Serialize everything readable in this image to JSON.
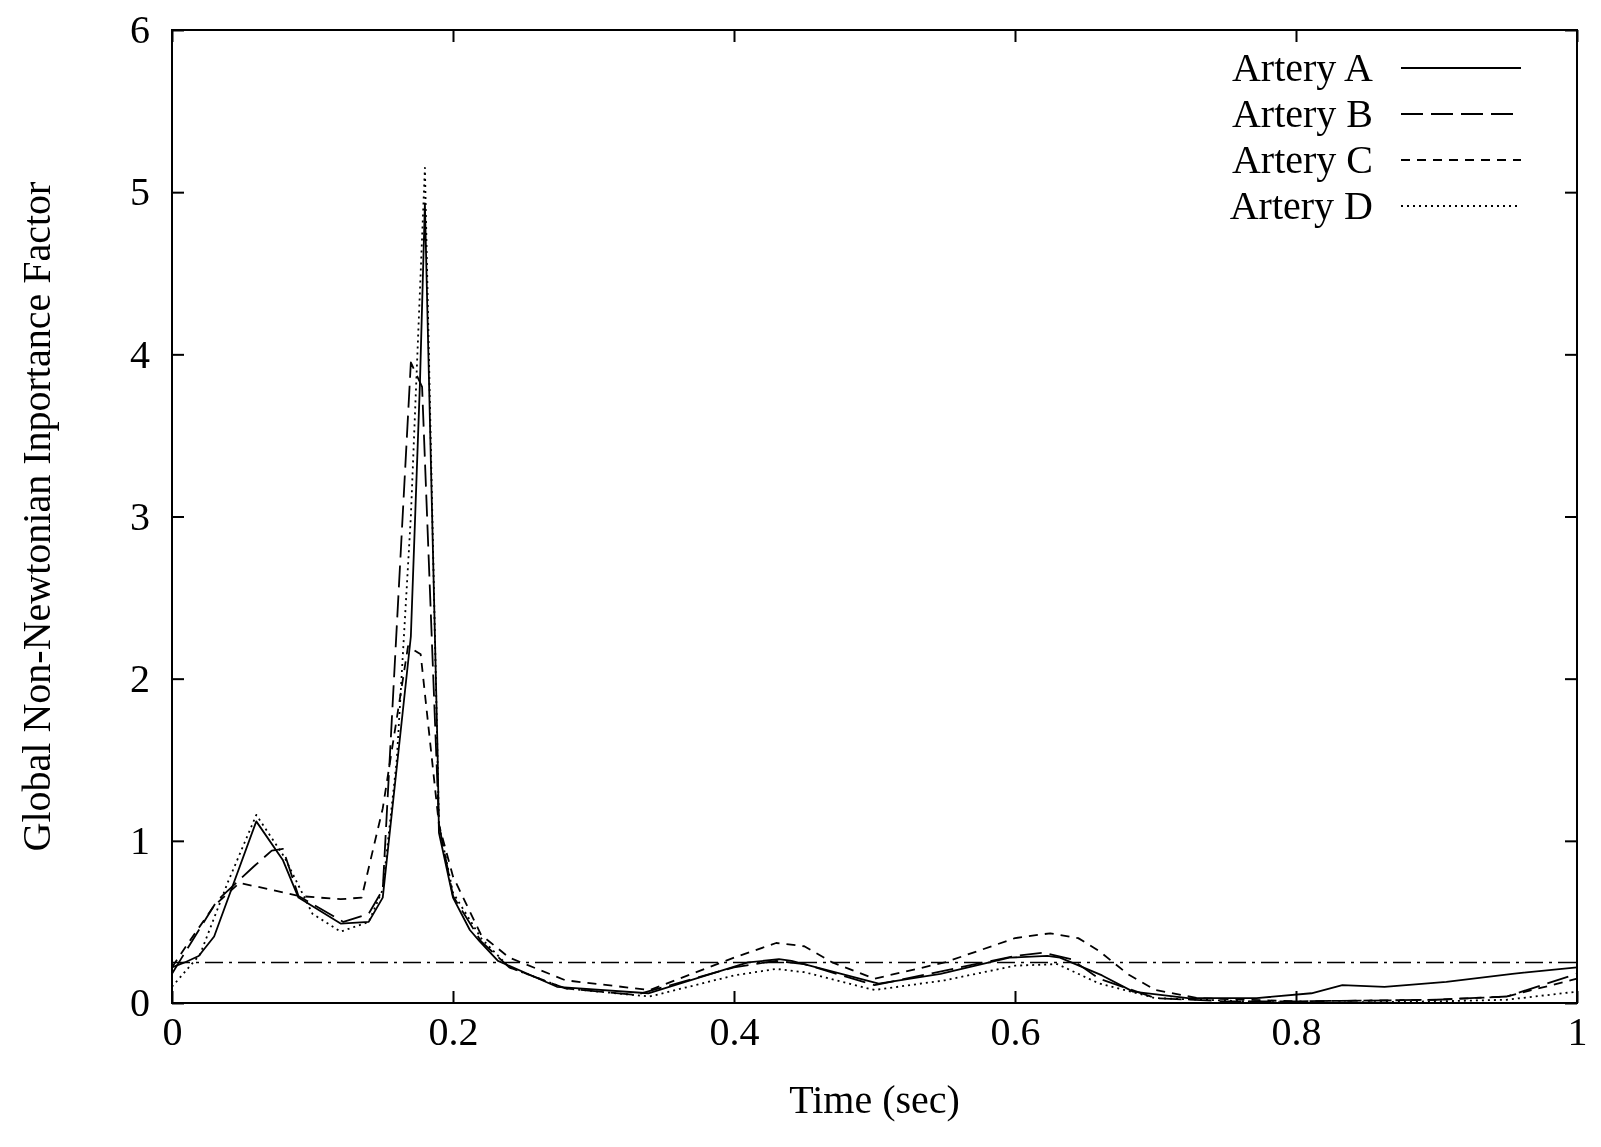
{
  "chart_data": {
    "type": "line",
    "xlabel": "Time (sec)",
    "ylabel": "Global Non-Newtonian Inportance Factor",
    "xlim": [
      0,
      1
    ],
    "ylim": [
      0,
      6
    ],
    "xticks": [
      0,
      0.2,
      0.4,
      0.6,
      0.8,
      1
    ],
    "yticks": [
      0,
      1,
      2,
      3,
      4,
      5,
      6
    ],
    "grid": false,
    "legend": "top right",
    "series": [
      {
        "name": "Artery A",
        "color": "#000000",
        "line_style": "solid",
        "x": [
          0,
          0.009,
          0.019,
          0.03,
          0.06,
          0.079,
          0.09,
          0.12,
          0.14,
          0.15,
          0.17,
          0.1765,
          0.18,
          0.189,
          0.19,
          0.2,
          0.212,
          0.219,
          0.232,
          0.274,
          0.339,
          0.41,
          0.432,
          0.441,
          0.503,
          0.547,
          0.596,
          0.623,
          0.632,
          0.662,
          0.684,
          0.723,
          0.772,
          0.811,
          0.833,
          0.863,
          0.907,
          0.954,
          1
        ],
        "values": [
          0.22,
          0.25,
          0.29,
          0.41,
          1.12,
          0.88,
          0.65,
          0.49,
          0.5,
          0.65,
          2.26,
          3.83,
          4.93,
          1.56,
          1.05,
          0.65,
          0.45,
          0.38,
          0.26,
          0.1,
          0.06,
          0.25,
          0.27,
          0.26,
          0.12,
          0.18,
          0.28,
          0.29,
          0.28,
          0.17,
          0.07,
          0.03,
          0.03,
          0.06,
          0.11,
          0.1,
          0.13,
          0.18,
          0.22
        ]
      },
      {
        "name": "Artery B",
        "color": "#000000",
        "line_style": "dashed",
        "x": [
          0,
          0.007,
          0.032,
          0.058,
          0.071,
          0.079,
          0.09,
          0.122,
          0.14,
          0.15,
          0.17,
          0.178,
          0.19,
          0.2,
          0.22,
          0.24,
          0.28,
          0.33,
          0.4,
          0.43,
          0.45,
          0.5,
          0.55,
          0.6,
          0.62,
          0.64,
          0.66,
          0.7,
          0.75,
          0.8,
          0.9,
          0.95,
          1
        ],
        "values": [
          0.18,
          0.28,
          0.63,
          0.84,
          0.94,
          0.95,
          0.66,
          0.5,
          0.55,
          0.7,
          3.95,
          3.8,
          1.1,
          0.66,
          0.38,
          0.22,
          0.09,
          0.05,
          0.22,
          0.26,
          0.24,
          0.11,
          0.2,
          0.29,
          0.31,
          0.27,
          0.15,
          0.03,
          0.01,
          0.01,
          0.02,
          0.04,
          0.18
        ]
      },
      {
        "name": "Artery C",
        "color": "#000000",
        "line_style": "dashed",
        "x": [
          0,
          0.01,
          0.03,
          0.048,
          0.07,
          0.09,
          0.12,
          0.135,
          0.15,
          0.168,
          0.177,
          0.19,
          0.2,
          0.22,
          0.24,
          0.28,
          0.34,
          0.4,
          0.43,
          0.45,
          0.47,
          0.5,
          0.55,
          0.6,
          0.625,
          0.645,
          0.66,
          0.68,
          0.7,
          0.73,
          0.8,
          0.9,
          0.95,
          1
        ],
        "values": [
          0.22,
          0.35,
          0.6,
          0.74,
          0.7,
          0.66,
          0.64,
          0.65,
          1.2,
          2.2,
          2.15,
          1.1,
          0.78,
          0.42,
          0.28,
          0.14,
          0.08,
          0.28,
          0.37,
          0.35,
          0.25,
          0.15,
          0.25,
          0.4,
          0.43,
          0.4,
          0.32,
          0.18,
          0.08,
          0.03,
          0.01,
          0.02,
          0.04,
          0.15
        ]
      },
      {
        "name": "Artery D",
        "color": "#000000",
        "line_style": "dotted",
        "x": [
          0,
          0.02,
          0.04,
          0.06,
          0.08,
          0.1,
          0.12,
          0.14,
          0.15,
          0.16,
          0.17,
          0.18,
          0.19,
          0.2,
          0.22,
          0.24,
          0.28,
          0.34,
          0.4,
          0.43,
          0.45,
          0.5,
          0.55,
          0.6,
          0.63,
          0.66,
          0.7,
          0.8,
          0.9,
          0.95,
          1
        ],
        "values": [
          0.1,
          0.3,
          0.75,
          1.16,
          0.9,
          0.55,
          0.44,
          0.5,
          0.7,
          1.5,
          3.0,
          5.15,
          1.1,
          0.68,
          0.4,
          0.22,
          0.09,
          0.04,
          0.17,
          0.21,
          0.19,
          0.08,
          0.14,
          0.23,
          0.24,
          0.12,
          0.03,
          0.0,
          0.01,
          0.02,
          0.07
        ]
      }
    ],
    "ref_lines": [
      {
        "axis": "y",
        "value": 0.25,
        "label": null
      }
    ]
  }
}
